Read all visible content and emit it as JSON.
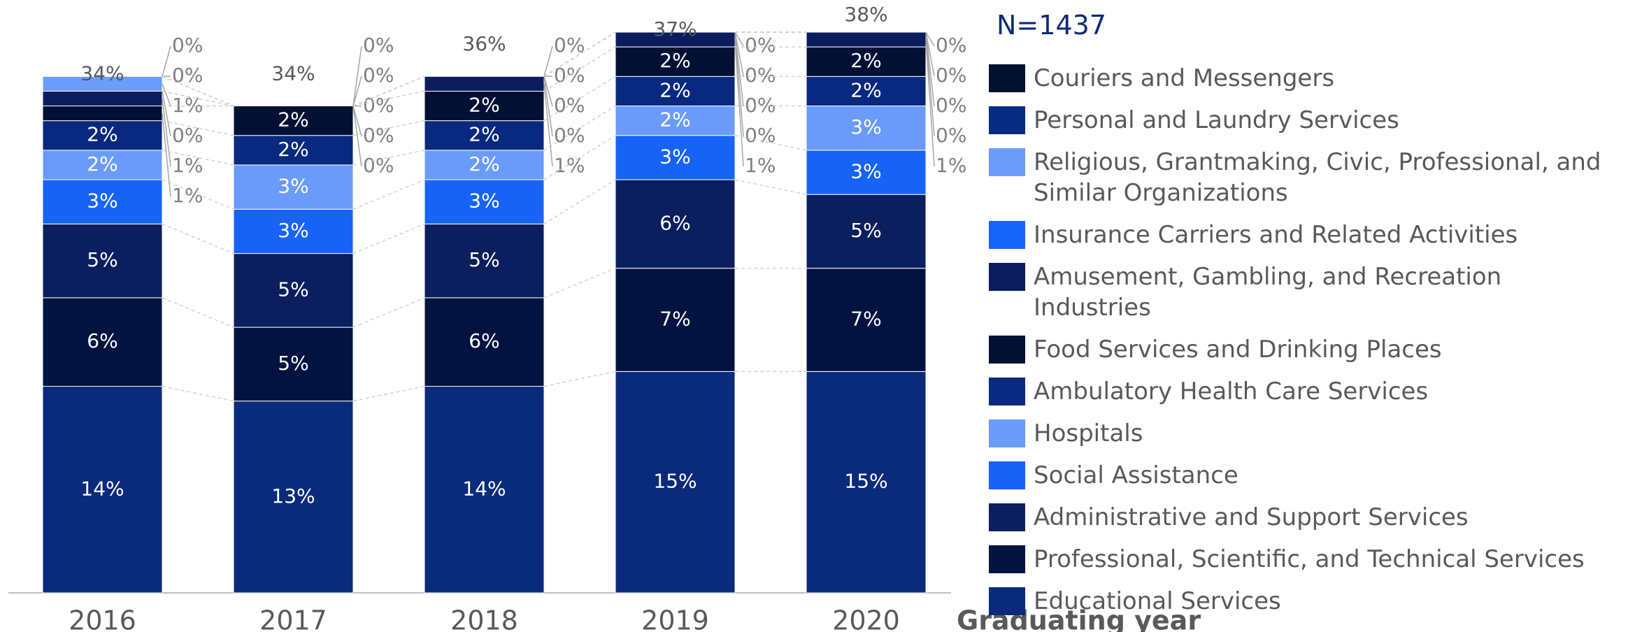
{
  "chart_data": {
    "type": "stacked_bar",
    "n_label": "N=1437",
    "x_label": "Graduating year",
    "categories": [
      "2016",
      "2017",
      "2018",
      "2019",
      "2020"
    ],
    "ylim": [
      0,
      38
    ],
    "totals": [
      34,
      34,
      36,
      37,
      38
    ],
    "total_labels": [
      "34%",
      "34%",
      "36%",
      "37%",
      "38%"
    ],
    "series": [
      {
        "name": "Educational Services",
        "color": "#0a2a7c",
        "values": [
          14,
          13,
          14,
          15,
          15
        ],
        "value_labels": [
          "14%",
          "13%",
          "14%",
          "15%",
          "15%"
        ]
      },
      {
        "name": "Professional, Scientific, and Technical Services",
        "color": "#03133f",
        "values": [
          6,
          5,
          6,
          7,
          7
        ],
        "value_labels": [
          "6%",
          "5%",
          "6%",
          "7%",
          "7%"
        ]
      },
      {
        "name": "Administrative and Support Services",
        "color": "#0b1f5e",
        "values": [
          5,
          5,
          5,
          6,
          5
        ],
        "value_labels": [
          "5%",
          "5%",
          "5%",
          "6%",
          "5%"
        ]
      },
      {
        "name": "Social Assistance",
        "color": "#1763f5",
        "values": [
          3,
          3,
          3,
          3,
          3
        ],
        "value_labels": [
          "3%",
          "3%",
          "3%",
          "3%",
          "3%"
        ]
      },
      {
        "name": "Hospitals",
        "color": "#6a9bfb",
        "values": [
          2,
          3,
          2,
          2,
          3
        ],
        "value_labels": [
          "2%",
          "3%",
          "2%",
          "2%",
          "3%"
        ]
      },
      {
        "name": "Ambulatory Health Care Services",
        "color": "#08297f",
        "values": [
          2,
          2,
          2,
          2,
          2
        ],
        "value_labels": [
          "2%",
          "2%",
          "2%",
          "2%",
          "2%"
        ]
      },
      {
        "name": "Food Services and Drinking Places",
        "color": "#021034",
        "values": [
          1,
          2,
          2,
          2,
          2
        ],
        "value_labels": [
          "1%",
          "2%",
          "2%",
          "2%",
          "2%"
        ]
      },
      {
        "name": "Amusement, Gambling, and Recreation Industries",
        "color": "#0b1d5c",
        "values": [
          1,
          0,
          1,
          1,
          1
        ],
        "value_labels": [
          "1%",
          "0%",
          "1%",
          "1%",
          "1%"
        ]
      },
      {
        "name": "Insurance Carriers and Related Activities",
        "color": "#1565f9",
        "values": [
          0,
          0,
          0,
          0,
          0
        ],
        "value_labels": [
          "0%",
          "0%",
          "0%",
          "0%",
          "0%"
        ]
      },
      {
        "name": "Religious, Grantmaking, Civic, Professional, and Similar Organizations",
        "color": "#6d9dfa",
        "values": [
          1,
          0,
          0,
          0,
          0
        ],
        "value_labels": [
          "1%",
          "0%",
          "0%",
          "0%",
          "0%"
        ]
      },
      {
        "name": "Personal and Laundry Services",
        "color": "#072b82",
        "values": [
          0,
          0,
          0,
          0,
          0
        ],
        "value_labels": [
          "0%",
          "0%",
          "0%",
          "0%",
          "0%"
        ]
      },
      {
        "name": "Couriers and Messengers",
        "color": "#02102f",
        "values": [
          0,
          0,
          0,
          0,
          0
        ],
        "value_labels": [
          "0%",
          "0%",
          "0%",
          "0%",
          "0%"
        ]
      }
    ]
  }
}
